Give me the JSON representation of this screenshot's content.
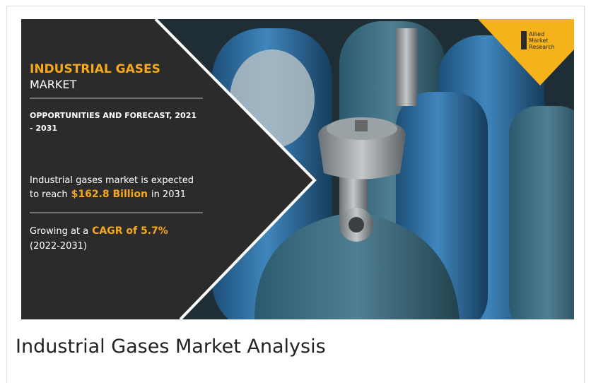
{
  "banner": {
    "title_line1": "INDUSTRIAL GASES",
    "title_line2": "MARKET",
    "subtitle_lines": [
      "OPPORTUNITIES AND FORECAST, 2021",
      "- 2031"
    ],
    "stat1": {
      "line1": "Industrial gases market is expected",
      "prefix": "to reach",
      "highlight": "$162.8 Billion",
      "suffix": "in 2031"
    },
    "stat2": {
      "prefix": "Growing at a",
      "highlight": "CAGR of 5.7%",
      "line2": "(2022-2031)"
    },
    "logo": [
      "Allied",
      "Market",
      "Research"
    ]
  },
  "caption": "Industrial Gases Market Analysis"
}
